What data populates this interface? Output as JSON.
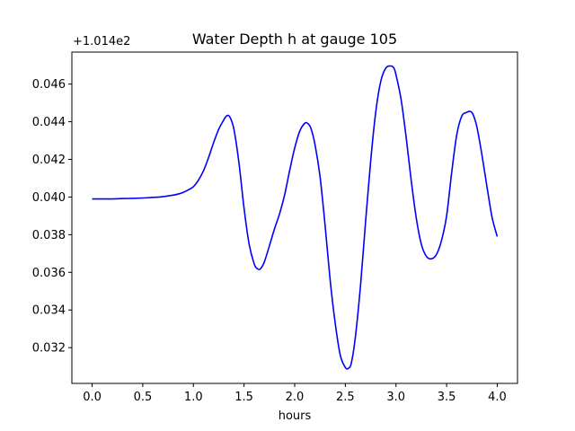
{
  "chart_data": {
    "type": "line",
    "title": "Water Depth h at gauge 105",
    "xlabel": "hours",
    "ylabel": "",
    "offset_label": "+1.014e2",
    "y_offset": 101.4,
    "xlim": [
      -0.2,
      4.2
    ],
    "ylim": [
      0.0301,
      0.0477
    ],
    "xticks": [
      0.0,
      0.5,
      1.0,
      1.5,
      2.0,
      2.5,
      3.0,
      3.5,
      4.0
    ],
    "xtick_labels": [
      "0.0",
      "0.5",
      "1.0",
      "1.5",
      "2.0",
      "2.5",
      "3.0",
      "3.5",
      "4.0"
    ],
    "yticks": [
      0.032,
      0.034,
      0.036,
      0.038,
      0.04,
      0.042,
      0.044,
      0.046
    ],
    "ytick_labels": [
      "0.032",
      "0.034",
      "0.036",
      "0.038",
      "0.040",
      "0.042",
      "0.044",
      "0.046"
    ],
    "grid": false,
    "color": "#0000ff",
    "series": [
      {
        "x": [
          0.0,
          0.1,
          0.2,
          0.3,
          0.4,
          0.5,
          0.6,
          0.7,
          0.8,
          0.85,
          0.9,
          0.95,
          1.0,
          1.05,
          1.1,
          1.15,
          1.2,
          1.25,
          1.3,
          1.33,
          1.36,
          1.4,
          1.45,
          1.5,
          1.55,
          1.6,
          1.63,
          1.66,
          1.7,
          1.75,
          1.8,
          1.85,
          1.9,
          1.95,
          2.0,
          2.05,
          2.1,
          2.13,
          2.16,
          2.2,
          2.25,
          2.3,
          2.35,
          2.4,
          2.45,
          2.5,
          2.53,
          2.56,
          2.6,
          2.65,
          2.7,
          2.75,
          2.8,
          2.85,
          2.9,
          2.95,
          2.98,
          3.0,
          3.05,
          3.1,
          3.15,
          3.2,
          3.25,
          3.3,
          3.35,
          3.4,
          3.45,
          3.5,
          3.55,
          3.6,
          3.65,
          3.7,
          3.73,
          3.76,
          3.8,
          3.85,
          3.9,
          3.95,
          4.0
        ],
        "y": [
          0.0399,
          0.0399,
          0.0399,
          0.03992,
          0.03993,
          0.03995,
          0.03998,
          0.04002,
          0.0401,
          0.04016,
          0.04025,
          0.04038,
          0.04055,
          0.0409,
          0.0414,
          0.0421,
          0.0429,
          0.0436,
          0.0441,
          0.04432,
          0.04425,
          0.0436,
          0.0418,
          0.0394,
          0.0375,
          0.03645,
          0.0362,
          0.03618,
          0.03655,
          0.0374,
          0.0383,
          0.0391,
          0.0401,
          0.0414,
          0.0426,
          0.0435,
          0.04392,
          0.0439,
          0.04365,
          0.0428,
          0.0411,
          0.0385,
          0.0356,
          0.0333,
          0.0316,
          0.03095,
          0.0309,
          0.0312,
          0.0326,
          0.0353,
          0.0387,
          0.0419,
          0.0445,
          0.04615,
          0.04685,
          0.04696,
          0.04685,
          0.0465,
          0.0452,
          0.0432,
          0.0409,
          0.0389,
          0.0375,
          0.03685,
          0.03672,
          0.03695,
          0.0377,
          0.039,
          0.0413,
          0.0433,
          0.0443,
          0.0445,
          0.04455,
          0.0444,
          0.0437,
          0.0422,
          0.0405,
          0.0389,
          0.0379
        ]
      }
    ]
  }
}
